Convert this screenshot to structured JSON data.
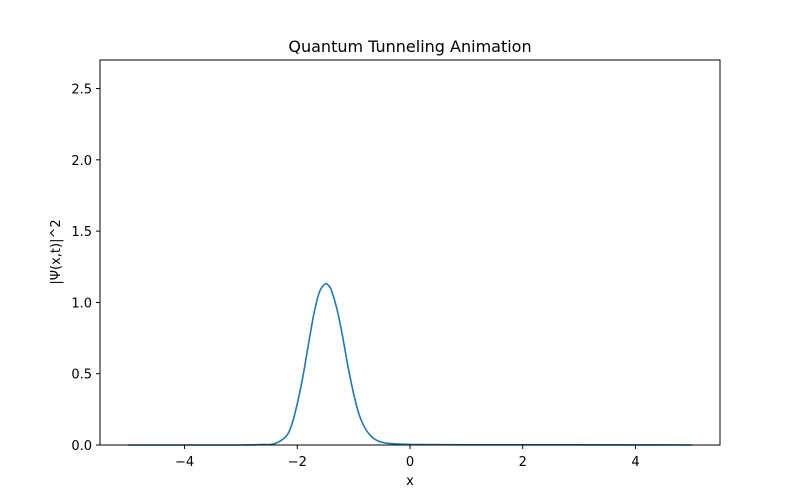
{
  "chart_data": {
    "type": "line",
    "title": "Quantum Tunneling Animation",
    "xlabel": "x",
    "ylabel": "|Ψ(x,t)|^2",
    "xlim": [
      -5.5,
      5.5
    ],
    "ylim": [
      0,
      2.7
    ],
    "xticks": [
      -4,
      -2,
      0,
      2,
      4
    ],
    "xtick_labels": [
      "−4",
      "−2",
      "0",
      "2",
      "4"
    ],
    "yticks": [
      0.0,
      0.5,
      1.0,
      1.5,
      2.0,
      2.5
    ],
    "ytick_labels": [
      "0.0",
      "0.5",
      "1.0",
      "1.5",
      "2.0",
      "2.5"
    ],
    "grid": false,
    "series": [
      {
        "color": "#1f77b4",
        "x": [
          -5.0,
          -4.0,
          -3.0,
          -2.6,
          -2.4,
          -2.2,
          -2.1,
          -2.0,
          -1.9,
          -1.8,
          -1.7,
          -1.6,
          -1.5,
          -1.45,
          -1.4,
          -1.3,
          -1.2,
          -1.1,
          -1.0,
          -0.9,
          -0.8,
          -0.7,
          -0.6,
          -0.5,
          -0.4,
          -0.2,
          0.0,
          0.2,
          0.5,
          1.0,
          2.0,
          3.0,
          4.0,
          5.0
        ],
        "y": [
          0.0,
          0.0,
          0.0,
          0.003,
          0.01,
          0.06,
          0.14,
          0.29,
          0.48,
          0.71,
          0.93,
          1.08,
          1.13,
          1.12,
          1.09,
          0.96,
          0.77,
          0.55,
          0.36,
          0.21,
          0.12,
          0.065,
          0.035,
          0.02,
          0.012,
          0.007,
          0.004,
          0.003,
          0.002,
          0.0015,
          0.001,
          0.001,
          0.0005,
          0.0
        ]
      }
    ]
  }
}
